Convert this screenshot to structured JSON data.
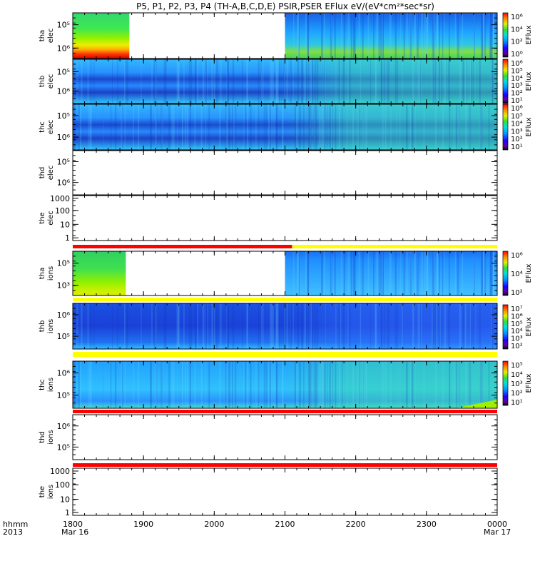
{
  "title": "P5, P1, P2, P3, P4 (TH-A,B,C,D,E) PSIR,PSER EFlux eV/(eV*cm²*sec*sr)",
  "footer": {
    "left_line1": "hhmm",
    "left_line2": "2013",
    "start_date": "Mar 16",
    "end_date": "Mar 17"
  },
  "colors": {
    "axis": "#000000",
    "flag_red": "#ff0000",
    "flag_yellow": "#ffff00",
    "background": "#ffffff"
  },
  "chart_data": {
    "type": "heatmap",
    "x_axis": {
      "unit": "hhmm",
      "range": [
        "1800",
        "0000"
      ],
      "ticks": [
        "1800",
        "1900",
        "2000",
        "2100",
        "2200",
        "2300",
        "0000"
      ],
      "tick_hours": [
        18,
        19,
        20,
        21,
        22,
        23,
        24
      ]
    },
    "panels": [
      {
        "id": "tha-elec",
        "label_line1": "tha",
        "label_line2": "elec",
        "yscale": "log",
        "ytick_labels": [
          "10⁵",
          "10⁶"
        ],
        "colorbar": {
          "label": "EFlux",
          "labels": [
            "10⁶",
            "10⁴",
            "10²",
            "10⁰"
          ],
          "scale": "log"
        },
        "data_gaps_hours": [
          [
            18.8,
            21.0
          ]
        ]
      },
      {
        "id": "thb-elec",
        "label_line1": "thb",
        "label_line2": "elec",
        "yscale": "log",
        "ytick_labels": [
          "10⁵",
          "10⁶"
        ],
        "colorbar": {
          "label": "EFlux",
          "labels": [
            "10⁶",
            "10⁵",
            "10⁴",
            "10³",
            "10²",
            "10¹"
          ],
          "scale": "log"
        },
        "data_gaps_hours": []
      },
      {
        "id": "thc-elec",
        "label_line1": "thc",
        "label_line2": "elec",
        "yscale": "log",
        "ytick_labels": [
          "10⁵",
          "10⁶"
        ],
        "colorbar": {
          "label": "EFlux",
          "labels": [
            "10⁶",
            "10⁵",
            "10⁴",
            "10³",
            "10²",
            "10¹"
          ],
          "scale": "log"
        },
        "data_gaps_hours": []
      },
      {
        "id": "thd-elec",
        "label_line1": "thd",
        "label_line2": "elec",
        "yscale": "log",
        "ytick_labels": [
          "10⁵",
          "10⁶"
        ],
        "colorbar": null,
        "empty": true
      },
      {
        "id": "the-elec",
        "label_line1": "the",
        "label_line2": "elec",
        "yscale": "log",
        "ytick_labels": [
          "1000",
          "100",
          "10",
          "1"
        ],
        "colorbar": null,
        "empty": true
      },
      {
        "id": "tha-ions",
        "label_line1": "tha",
        "label_line2": "ions",
        "yscale": "log",
        "ytick_labels": [
          "10⁵",
          "10³"
        ],
        "colorbar": {
          "label": "EFlux",
          "labels": [
            "10⁶",
            "10⁴",
            "10²"
          ],
          "scale": "log"
        },
        "data_gaps_hours": [
          [
            18.75,
            21.0
          ]
        ]
      },
      {
        "id": "thb-ions",
        "label_line1": "thb",
        "label_line2": "ions",
        "yscale": "log",
        "ytick_labels": [
          "10⁶",
          "10⁵"
        ],
        "colorbar": {
          "label": "EFlux",
          "labels": [
            "10⁷",
            "10⁶",
            "10⁵",
            "10⁴",
            "10³",
            "10²"
          ],
          "scale": "log"
        },
        "data_gaps_hours": []
      },
      {
        "id": "thc-ions",
        "label_line1": "thc",
        "label_line2": "ions",
        "yscale": "log",
        "ytick_labels": [
          "10⁶",
          "10⁵"
        ],
        "colorbar": {
          "label": "EFlux",
          "labels": [
            "10⁵",
            "10⁴",
            "10³",
            "10²",
            "10¹"
          ],
          "scale": "log"
        },
        "data_gaps_hours": []
      },
      {
        "id": "thd-ions",
        "label_line1": "thd",
        "label_line2": "ions",
        "yscale": "log",
        "ytick_labels": [
          "10⁶",
          "10⁵"
        ],
        "colorbar": null,
        "empty": true
      },
      {
        "id": "the-ions",
        "label_line1": "the",
        "label_line2": "ions",
        "yscale": "log",
        "ytick_labels": [
          "1000",
          "100",
          "10",
          "1"
        ],
        "colorbar": null,
        "empty": true
      }
    ],
    "flag_bars": [
      {
        "after_panel": "the-elec",
        "segments": [
          {
            "color": "red",
            "from": 18.0,
            "to": 21.1
          },
          {
            "color": "yellow",
            "from": 21.1,
            "to": 24.0
          }
        ]
      },
      {
        "after_panel": "tha-ions",
        "segments": [
          {
            "color": "yellow",
            "from": 18.0,
            "to": 24.0
          }
        ]
      },
      {
        "after_panel": "thb-ions",
        "segments": [
          {
            "color": "yellow",
            "from": 18.0,
            "to": 24.0
          }
        ]
      },
      {
        "after_panel": "thc-ions",
        "segments": [
          {
            "color": "red",
            "from": 18.0,
            "to": 24.0
          }
        ]
      },
      {
        "after_panel": "thd-ions",
        "segments": [
          {
            "color": "red",
            "from": 18.0,
            "to": 24.0
          }
        ]
      }
    ]
  }
}
